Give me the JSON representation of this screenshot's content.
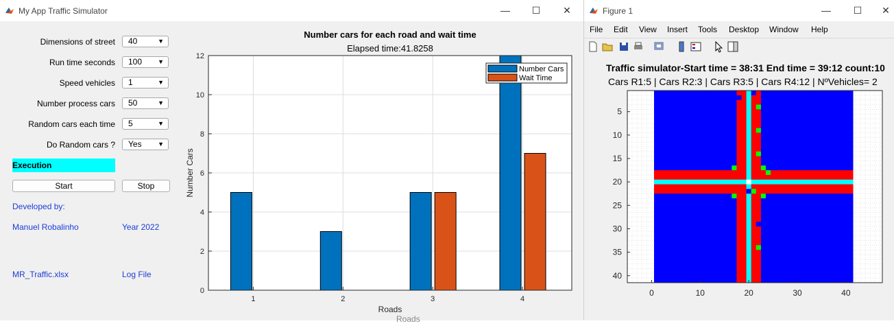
{
  "app": {
    "title": "My App Traffic Simulator",
    "controls": [
      {
        "label": "Dimensions of street",
        "value": "40"
      },
      {
        "label": "Run time seconds",
        "value": "100"
      },
      {
        "label": "Speed vehicles",
        "value": "1"
      },
      {
        "label": "Number process cars",
        "value": "50"
      },
      {
        "label": "Random cars each time",
        "value": "5"
      },
      {
        "label": "Do Random cars ?",
        "value": "Yes"
      }
    ],
    "execution_label": "Execution",
    "start_label": "Start",
    "stop_label": "Stop",
    "developed_by": "Developed by:",
    "author": "Manuel Robalinho",
    "year": "Year 2022",
    "file_link": "MR_Traffic.xlsx",
    "log_link": "Log File",
    "highlight_color": "#00ffff",
    "link_color": "#1c3dd6",
    "stray_text": "Roads"
  },
  "chart_data": {
    "type": "bar",
    "title": "Number cars for each road and wait time",
    "subtitle": "Elapsed time:41.8258",
    "xlabel": "Roads",
    "ylabel": "Number Cars",
    "categories": [
      "1",
      "2",
      "3",
      "4"
    ],
    "ylim": [
      0,
      12
    ],
    "yticks": [
      "0",
      "2",
      "4",
      "6",
      "8",
      "10",
      "12"
    ],
    "grid": true,
    "legend_position": "top-right",
    "series": [
      {
        "name": "Number Cars",
        "values": [
          5,
          3,
          5,
          12
        ],
        "color": "#0072bd"
      },
      {
        "name": "Wait Time",
        "values": [
          0,
          0,
          5,
          7
        ],
        "color": "#d95319"
      }
    ]
  },
  "figure": {
    "title": "Figure 1",
    "menu": [
      "File",
      "Edit",
      "View",
      "Insert",
      "Tools",
      "Desktop",
      "Window",
      "Help"
    ],
    "toolbar_icons": [
      "new-file-icon",
      "open-folder-icon",
      "save-icon",
      "print-icon",
      "link-icon",
      "colorbar-icon",
      "legend-icon",
      "pointer-icon",
      "panel-icon"
    ],
    "plot_title": "Traffic simulator-Start time = 38:31 End time = 39:12 count:10",
    "plot_subtitle": "Cars R1:5 |  Cars R2:3 |  Cars R3:5 | Cars R4:12 | NºVehicles= 2",
    "xticks": [
      "0",
      "10",
      "20",
      "30",
      "40"
    ],
    "yticks": [
      "5",
      "10",
      "15",
      "20",
      "25",
      "30",
      "35",
      "40"
    ],
    "colors": {
      "background": "#0000ff",
      "road": "#ff0000",
      "lane": "#00ffff",
      "car": "#00ff00",
      "car_alt": "#0000ff"
    }
  }
}
